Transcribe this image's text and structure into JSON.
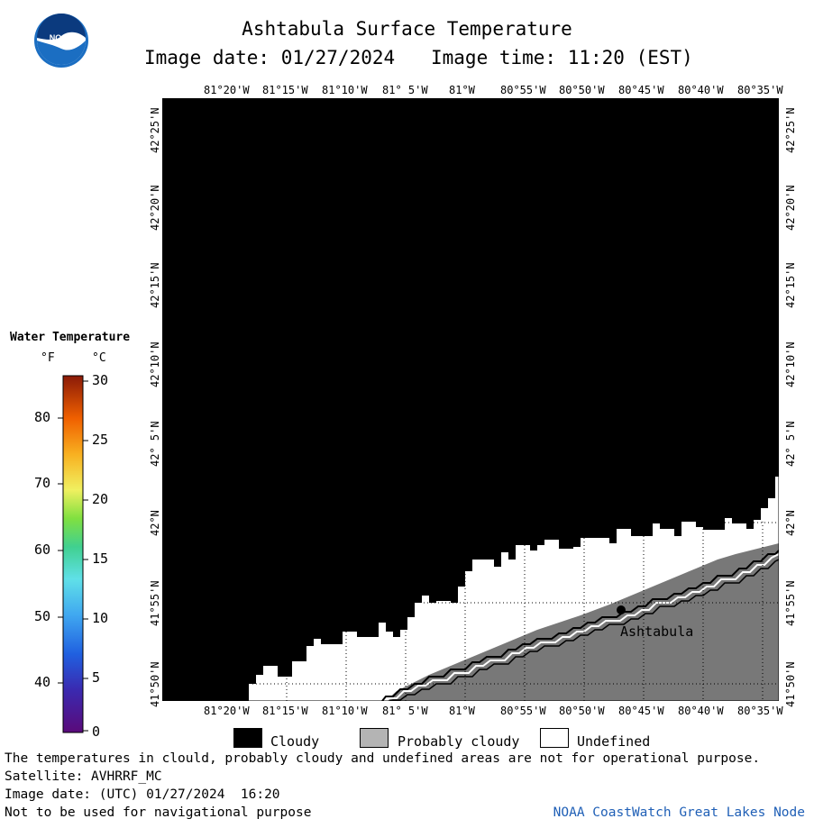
{
  "header": {
    "title": "Ashtabula Surface Temperature",
    "image_date_text": "Image date: 01/27/2024",
    "image_time_text": "Image time: 11:20 (EST)"
  },
  "logo": {
    "text": "NOAA"
  },
  "map": {
    "lon_labels": [
      "81°20'W",
      "81°15'W",
      "81°10'W",
      "81° 5'W",
      "81°W",
      "80°55'W",
      "80°50'W",
      "80°45'W",
      "80°40'W",
      "80°35'W"
    ],
    "lat_labels": [
      "42°25'N",
      "42°20'N",
      "42°15'N",
      "42°10'N",
      "42° 5'N",
      "42°N",
      "41°55'N",
      "41°50'N"
    ],
    "place_label": "Ashtabula",
    "colors": {
      "cloudy": "#000000",
      "probably_cloudy": "#b4b4b4",
      "land": "#787878",
      "undefined": "#ffffff"
    }
  },
  "colorbar": {
    "title": "Water Temperature",
    "unit_f": "°F",
    "unit_c": "°C",
    "f_ticks": [
      "80",
      "70",
      "60",
      "50",
      "40"
    ],
    "c_ticks": [
      "30",
      "25",
      "20",
      "15",
      "10",
      "5",
      "0"
    ]
  },
  "key": {
    "cloudy": "Cloudy",
    "probably_cloudy": "Probably cloudy",
    "undefined": "Undefined"
  },
  "footer": {
    "note": "The temperatures in clould, probably cloudy and undefined areas are not for operational purpose.",
    "satellite": "Satellite: AVHRRF_MC",
    "utc_date": "Image date: (UTC) 01/27/2024  16:20",
    "nav_warning": "Not to be used for navigational purpose",
    "node": "NOAA CoastWatch Great Lakes Node"
  }
}
